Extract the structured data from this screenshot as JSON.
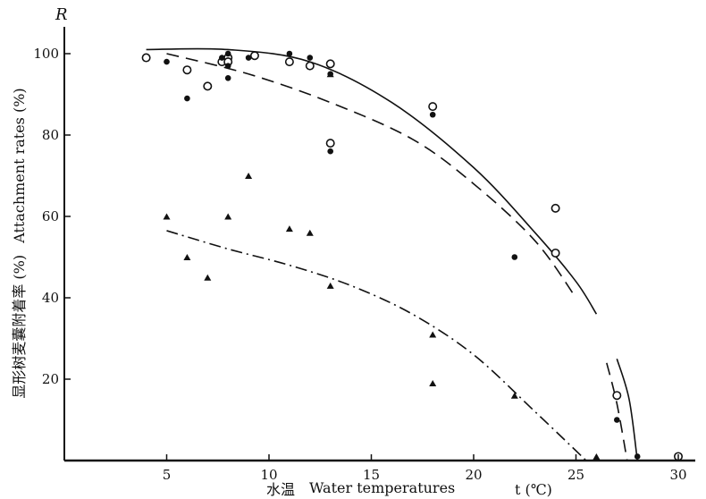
{
  "chart_data": {
    "type": "scatter",
    "y_symbol": "R",
    "xlabel": {
      "cn": "水温",
      "en": "Water temperatures",
      "symbol": "t (℃)"
    },
    "ylabel": {
      "cn": "显形树麦囊附着率 (%)",
      "en": "Attachment rates (%)"
    },
    "xlim": [
      0,
      30
    ],
    "ylim": [
      0,
      100
    ],
    "x_ticks": [
      5,
      10,
      15,
      20,
      25,
      30
    ],
    "y_ticks": [
      20,
      40,
      60,
      80,
      100
    ],
    "grid": false,
    "series": [
      {
        "marker": "open-circle",
        "points": [
          [
            4,
            99
          ],
          [
            6,
            96
          ],
          [
            7,
            92
          ],
          [
            7.7,
            98
          ],
          [
            8,
            99
          ],
          [
            8,
            98
          ],
          [
            9.3,
            99.5
          ],
          [
            11,
            98
          ],
          [
            12,
            97
          ],
          [
            13,
            97.5
          ],
          [
            13,
            78
          ],
          [
            18,
            87
          ],
          [
            24,
            62
          ],
          [
            24,
            51
          ],
          [
            27,
            16
          ],
          [
            30,
            1
          ]
        ]
      },
      {
        "marker": "filled-circle",
        "points": [
          [
            5,
            98
          ],
          [
            6,
            89
          ],
          [
            7.7,
            99
          ],
          [
            8,
            100
          ],
          [
            8,
            97
          ],
          [
            8,
            94
          ],
          [
            9,
            99
          ],
          [
            11,
            100
          ],
          [
            12,
            99
          ],
          [
            13,
            95
          ],
          [
            13,
            76
          ],
          [
            18,
            85
          ],
          [
            22,
            50
          ],
          [
            27,
            10
          ],
          [
            28,
            1
          ]
        ]
      },
      {
        "marker": "filled-triangle",
        "points": [
          [
            5,
            60
          ],
          [
            6,
            50
          ],
          [
            7,
            45
          ],
          [
            8,
            60
          ],
          [
            9,
            70
          ],
          [
            11,
            57
          ],
          [
            12,
            56
          ],
          [
            13,
            95
          ],
          [
            13,
            43
          ],
          [
            18,
            31
          ],
          [
            18,
            19
          ],
          [
            22,
            16
          ],
          [
            26,
            1
          ]
        ]
      }
    ],
    "curves": [
      {
        "style": "solid",
        "points": [
          [
            4,
            101
          ],
          [
            8,
            101
          ],
          [
            12,
            98
          ],
          [
            16,
            88
          ],
          [
            20,
            72
          ],
          [
            23,
            56
          ],
          [
            25,
            44
          ],
          [
            26,
            36
          ]
        ]
      },
      {
        "style": "solid",
        "points": [
          [
            27,
            25
          ],
          [
            27.6,
            15
          ],
          [
            28,
            0
          ]
        ]
      },
      {
        "style": "dashed",
        "points": [
          [
            5,
            100
          ],
          [
            9,
            95
          ],
          [
            13,
            88
          ],
          [
            17,
            79
          ],
          [
            20,
            68
          ],
          [
            23,
            54
          ],
          [
            25,
            40
          ]
        ]
      },
      {
        "style": "dashed",
        "points": [
          [
            26.5,
            24
          ],
          [
            27,
            14
          ],
          [
            27.5,
            0
          ]
        ]
      },
      {
        "style": "dash-dot",
        "points": [
          [
            5,
            56.5
          ],
          [
            8,
            52
          ],
          [
            11,
            48
          ],
          [
            14,
            43
          ],
          [
            17,
            36
          ],
          [
            20,
            26
          ],
          [
            23,
            12
          ],
          [
            25.5,
            0
          ]
        ]
      }
    ]
  }
}
